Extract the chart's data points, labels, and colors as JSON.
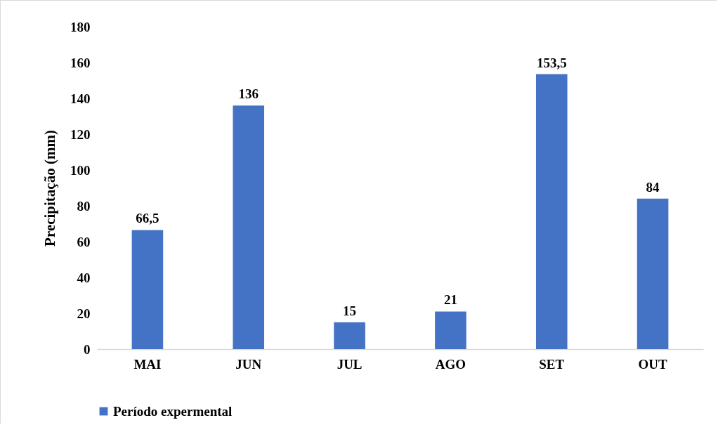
{
  "chart_data": {
    "type": "bar",
    "ylabel": "Precipitação (mm)",
    "categories": [
      "MAI",
      "JUN",
      "JUL",
      "AGO",
      "SET",
      "OUT"
    ],
    "series": [
      {
        "name": "Período expermental",
        "color": "#4472c4",
        "values": [
          66.5,
          136,
          15,
          21,
          153.5,
          84
        ]
      }
    ],
    "value_labels": [
      "66,5",
      "136",
      "15",
      "21",
      "153,5",
      "84"
    ],
    "ylim": [
      0,
      180
    ],
    "yticks": [
      0,
      20,
      40,
      60,
      80,
      100,
      120,
      140,
      160,
      180
    ],
    "grid": false,
    "legend": "bottom"
  }
}
